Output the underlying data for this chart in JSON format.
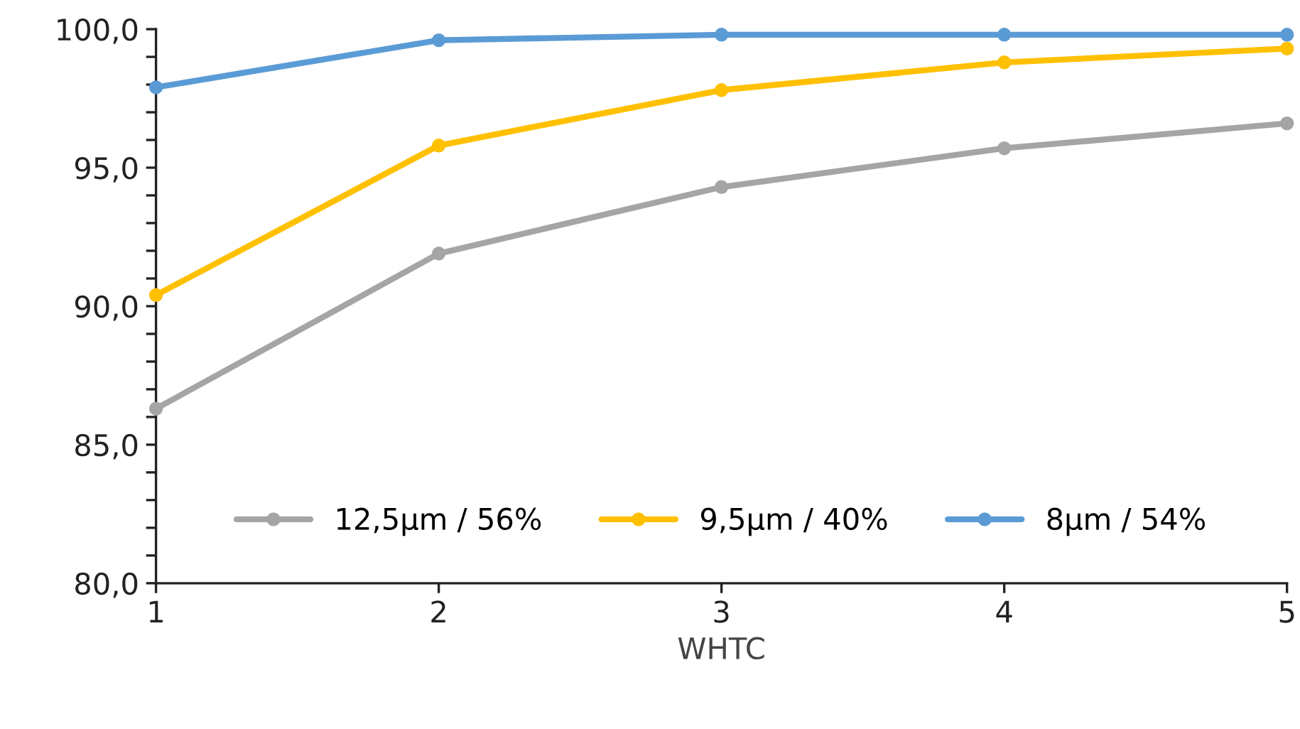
{
  "chart_data": {
    "type": "line",
    "xlabel": "WHTC",
    "x": [
      1,
      2,
      3,
      4,
      5
    ],
    "series": [
      {
        "name": "12,5µm / 56%",
        "color": "#a5a5a5",
        "values": [
          86.3,
          91.9,
          94.3,
          95.7,
          96.6
        ]
      },
      {
        "name": "9,5µm / 40%",
        "color": "#ffc000",
        "values": [
          90.4,
          95.8,
          97.8,
          98.8,
          99.3
        ]
      },
      {
        "name": "8µm / 54%",
        "color": "#5b9bd5",
        "values": [
          97.9,
          99.6,
          99.8,
          99.8,
          99.8
        ]
      }
    ],
    "xlim": [
      1,
      5
    ],
    "xticks": [
      1,
      2,
      3,
      4,
      5
    ],
    "ylim": [
      80,
      100
    ],
    "yticks": [
      {
        "value": 80,
        "label": "80,0"
      },
      {
        "value": 81,
        "label": null
      },
      {
        "value": 82,
        "label": null
      },
      {
        "value": 83,
        "label": null
      },
      {
        "value": 84,
        "label": null
      },
      {
        "value": 85,
        "label": "85,0"
      },
      {
        "value": 86,
        "label": null
      },
      {
        "value": 87,
        "label": null
      },
      {
        "value": 88,
        "label": null
      },
      {
        "value": 89,
        "label": null
      },
      {
        "value": 90,
        "label": "90,0"
      },
      {
        "value": 91,
        "label": null
      },
      {
        "value": 92,
        "label": null
      },
      {
        "value": 93,
        "label": null
      },
      {
        "value": 94,
        "label": null
      },
      {
        "value": 95,
        "label": "95,0"
      },
      {
        "value": 96,
        "label": null
      },
      {
        "value": 97,
        "label": null
      },
      {
        "value": 98,
        "label": null
      },
      {
        "value": 99,
        "label": null
      },
      {
        "value": 100,
        "label": "100,0"
      }
    ],
    "grid": false,
    "legend": "bottom",
    "marker": "circle",
    "line_style": "solid"
  }
}
